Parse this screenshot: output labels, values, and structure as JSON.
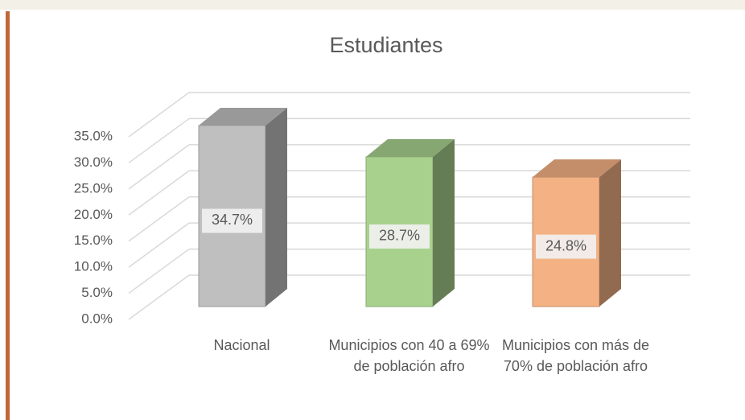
{
  "chart_data": {
    "type": "bar3d",
    "title": "Estudiantes",
    "categories": [
      "Nacional",
      "Municipios con 40 a 69% de población afro",
      "Municipios con más de 70% de población afro"
    ],
    "values": [
      34.7,
      28.7,
      24.8
    ],
    "value_labels": [
      "34.7%",
      "28.7%",
      "24.8%"
    ],
    "colors": [
      "#bfbfbf",
      "#a9d18e",
      "#f4b183"
    ],
    "ylim": [
      0,
      35
    ],
    "yticks": [
      {
        "value": 0,
        "label": "0.0%"
      },
      {
        "value": 5,
        "label": "5.0%"
      },
      {
        "value": 10,
        "label": "10.0%"
      },
      {
        "value": 15,
        "label": "15.0%"
      },
      {
        "value": 20,
        "label": "20.0%"
      },
      {
        "value": 25,
        "label": "25.0%"
      },
      {
        "value": 30,
        "label": "30.0%"
      },
      {
        "value": 35,
        "label": "35.0%"
      }
    ],
    "grid": true
  }
}
